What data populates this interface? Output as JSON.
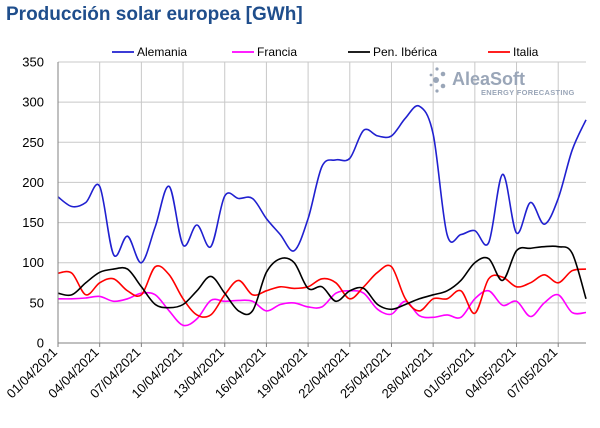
{
  "chart_data": {
    "type": "line",
    "title": "Producción solar europea [GWh]",
    "xlabel": "",
    "ylabel": "",
    "ylim": [
      0,
      350
    ],
    "yticks": [
      0,
      50,
      100,
      150,
      200,
      250,
      300,
      350
    ],
    "grid": true,
    "legend_position": "top",
    "x": [
      "01/04/2021",
      "02/04/2021",
      "03/04/2021",
      "04/04/2021",
      "05/04/2021",
      "06/04/2021",
      "07/04/2021",
      "08/04/2021",
      "09/04/2021",
      "10/04/2021",
      "11/04/2021",
      "12/04/2021",
      "13/04/2021",
      "14/04/2021",
      "15/04/2021",
      "16/04/2021",
      "17/04/2021",
      "18/04/2021",
      "19/04/2021",
      "20/04/2021",
      "21/04/2021",
      "22/04/2021",
      "23/04/2021",
      "24/04/2021",
      "25/04/2021",
      "26/04/2021",
      "27/04/2021",
      "28/04/2021",
      "29/04/2021",
      "30/04/2021",
      "01/05/2021",
      "02/05/2021",
      "03/05/2021",
      "04/05/2021",
      "05/05/2021",
      "06/05/2021",
      "07/05/2021",
      "08/05/2021",
      "09/05/2021"
    ],
    "xtick_labels": [
      "01/04/2021",
      "04/04/2021",
      "07/04/2021",
      "10/04/2021",
      "13/04/2021",
      "16/04/2021",
      "19/04/2021",
      "22/04/2021",
      "25/04/2021",
      "28/04/2021",
      "01/05/2021",
      "04/05/2021",
      "07/05/2021"
    ],
    "series": [
      {
        "name": "Alemania",
        "color": "#2020d0",
        "values": [
          182,
          170,
          175,
          195,
          110,
          133,
          100,
          145,
          195,
          122,
          147,
          120,
          183,
          180,
          180,
          155,
          135,
          115,
          155,
          220,
          228,
          230,
          265,
          258,
          258,
          280,
          295,
          260,
          135,
          135,
          140,
          125,
          210,
          137,
          175,
          148,
          180,
          240,
          278
        ]
      },
      {
        "name": "Francia",
        "color": "#ff00ff",
        "values": [
          55,
          55,
          56,
          58,
          52,
          55,
          62,
          60,
          40,
          22,
          30,
          53,
          52,
          53,
          52,
          40,
          48,
          50,
          45,
          45,
          62,
          65,
          62,
          42,
          36,
          52,
          34,
          32,
          35,
          32,
          55,
          65,
          47,
          52,
          33,
          50,
          60,
          38,
          38
        ]
      },
      {
        "name": "Pen. Ibérica",
        "color": "#000000",
        "values": [
          62,
          60,
          75,
          88,
          92,
          92,
          70,
          48,
          44,
          48,
          65,
          83,
          62,
          40,
          40,
          88,
          105,
          100,
          68,
          70,
          52,
          65,
          68,
          48,
          42,
          48,
          55,
          60,
          65,
          78,
          100,
          105,
          78,
          115,
          118,
          120,
          120,
          112,
          55
        ]
      },
      {
        "name": "Italia",
        "color": "#ff0000",
        "values": [
          87,
          87,
          60,
          75,
          80,
          65,
          60,
          95,
          85,
          55,
          35,
          35,
          60,
          78,
          60,
          65,
          70,
          68,
          70,
          80,
          75,
          55,
          70,
          88,
          95,
          55,
          40,
          55,
          55,
          65,
          37,
          80,
          82,
          70,
          75,
          85,
          75,
          90,
          92
        ]
      }
    ]
  },
  "logo": {
    "name": "AleaSoft",
    "tagline": "ENERGY FORECASTING",
    "icon": "aleasoft-logo-icon"
  }
}
